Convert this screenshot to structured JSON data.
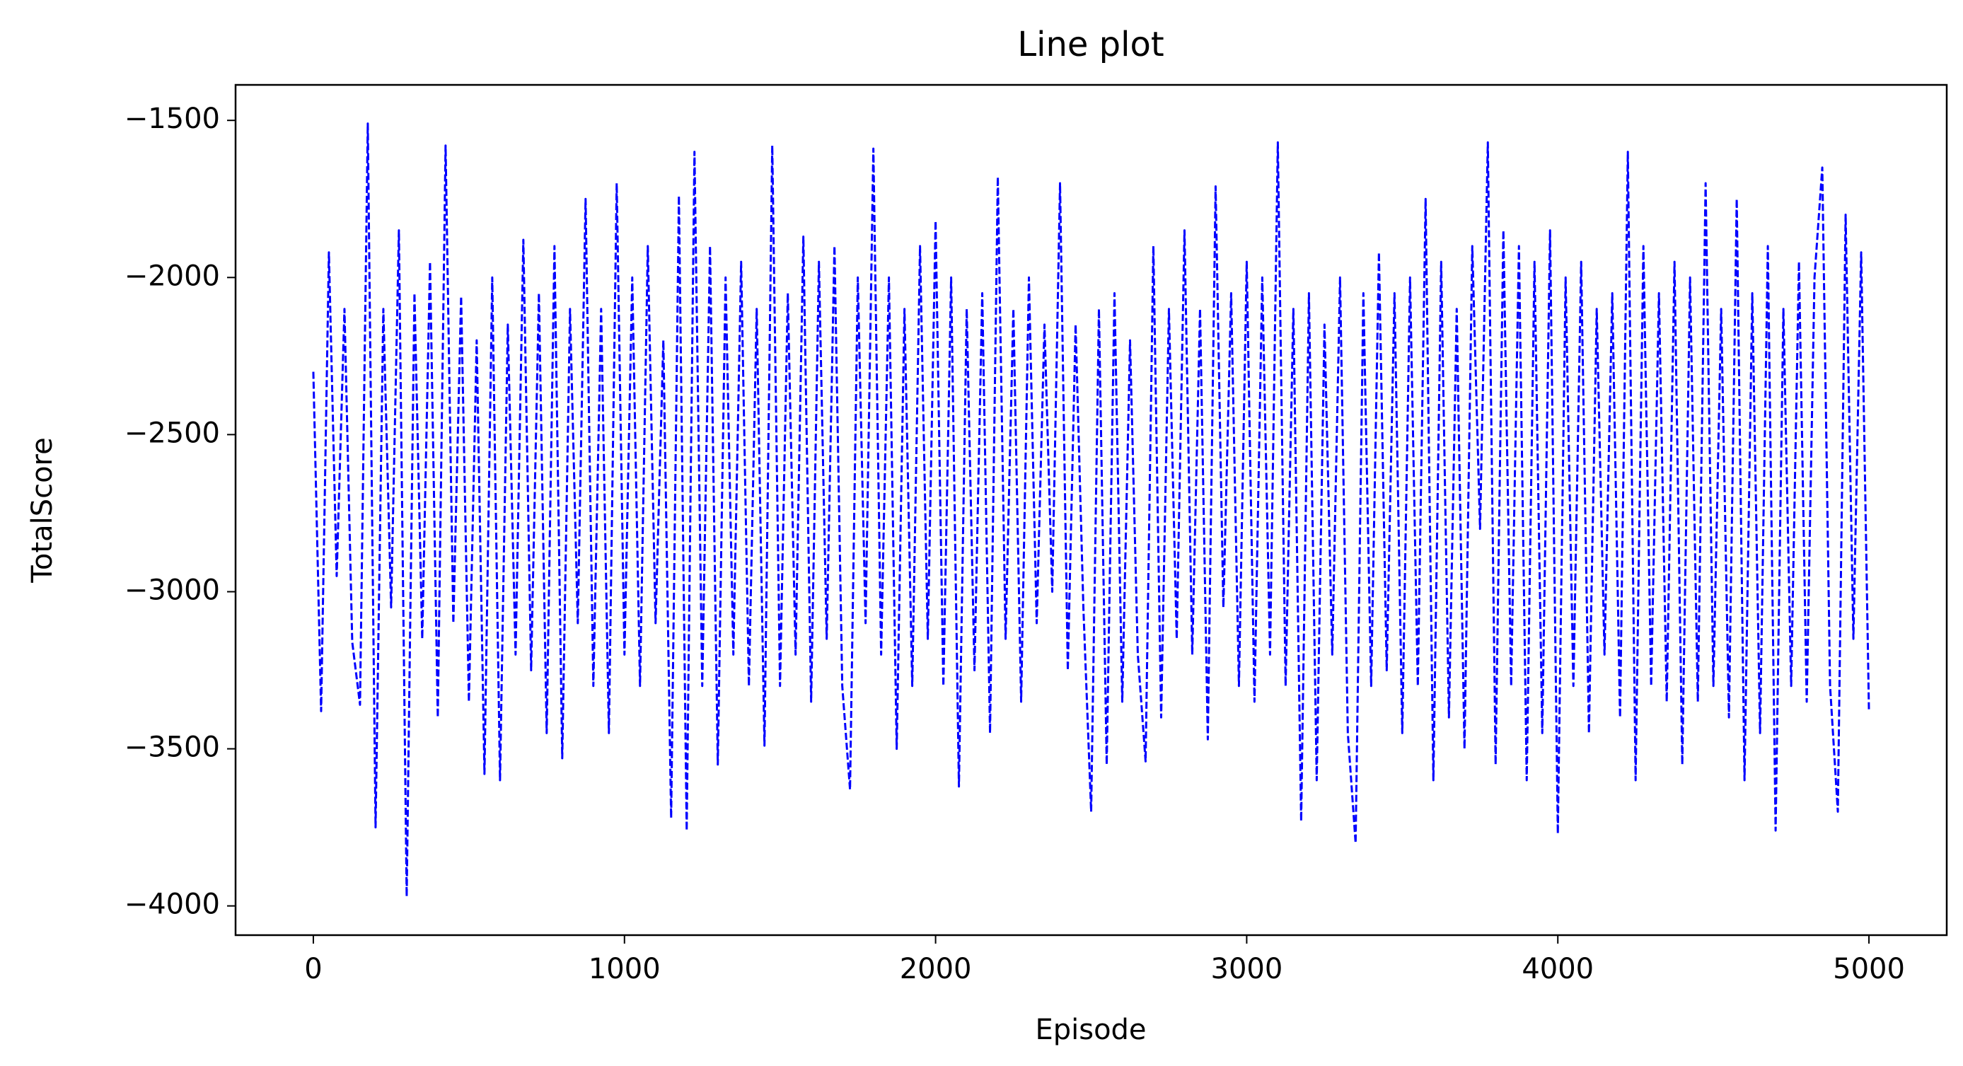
{
  "chart_data": {
    "type": "line",
    "title": "Line plot",
    "x_label": "Episode",
    "y_label": "TotalScore",
    "color": "#0000ff",
    "linestyle": "dashed",
    "x": [
      0,
      25,
      50,
      75,
      100,
      125,
      150,
      175,
      200,
      225,
      250,
      275,
      300,
      325,
      350,
      375,
      400,
      425,
      450,
      475,
      500,
      525,
      550,
      575,
      600,
      625,
      650,
      675,
      700,
      725,
      750,
      775,
      800,
      825,
      850,
      875,
      900,
      925,
      950,
      975,
      1000,
      1025,
      1050,
      1075,
      1100,
      1125,
      1150,
      1175,
      1200,
      1225,
      1250,
      1275,
      1300,
      1325,
      1350,
      1375,
      1400,
      1425,
      1450,
      1475,
      1500,
      1525,
      1550,
      1575,
      1600,
      1625,
      1650,
      1675,
      1700,
      1725,
      1750,
      1775,
      1800,
      1825,
      1850,
      1875,
      1900,
      1925,
      1950,
      1975,
      2000,
      2025,
      2050,
      2075,
      2100,
      2125,
      2150,
      2175,
      2200,
      2225,
      2250,
      2275,
      2300,
      2325,
      2350,
      2375,
      2400,
      2425,
      2450,
      2475,
      2500,
      2525,
      2550,
      2575,
      2600,
      2625,
      2650,
      2675,
      2700,
      2725,
      2750,
      2775,
      2800,
      2825,
      2850,
      2875,
      2900,
      2925,
      2950,
      2975,
      3000,
      3025,
      3050,
      3075,
      3100,
      3125,
      3150,
      3175,
      3200,
      3225,
      3250,
      3275,
      3300,
      3325,
      3350,
      3375,
      3400,
      3425,
      3450,
      3475,
      3500,
      3525,
      3550,
      3575,
      3600,
      3625,
      3650,
      3675,
      3700,
      3725,
      3750,
      3775,
      3800,
      3825,
      3850,
      3875,
      3900,
      3925,
      3950,
      3975,
      4000,
      4025,
      4050,
      4075,
      4100,
      4125,
      4150,
      4175,
      4200,
      4225,
      4250,
      4275,
      4300,
      4325,
      4350,
      4375,
      4400,
      4425,
      4450,
      4475,
      4500,
      4525,
      4550,
      4575,
      4600,
      4625,
      4650,
      4675,
      4700,
      4725,
      4750,
      4775,
      4800,
      4825,
      4850,
      4875,
      4900,
      4925,
      4950,
      4975,
      5000
    ],
    "values": [
      -2300,
      -3380,
      -1920,
      -2950,
      -2100,
      -3160,
      -3360,
      -1510,
      -3750,
      -2100,
      -3050,
      -1850,
      -3970,
      -2050,
      -3150,
      -1950,
      -3400,
      -1580,
      -3100,
      -2060,
      -3350,
      -2200,
      -3580,
      -2000,
      -3600,
      -2150,
      -3200,
      -1880,
      -3250,
      -2050,
      -3450,
      -1900,
      -3530,
      -2100,
      -3100,
      -1750,
      -3300,
      -2100,
      -3450,
      -1700,
      -3200,
      -2000,
      -3300,
      -1900,
      -3100,
      -2200,
      -3720,
      -1740,
      -3760,
      -1600,
      -3300,
      -1900,
      -3550,
      -2000,
      -3200,
      -1950,
      -3300,
      -2100,
      -3490,
      -1580,
      -3300,
      -2050,
      -3200,
      -1870,
      -3350,
      -1950,
      -3150,
      -1900,
      -3300,
      -3630,
      -2000,
      -3100,
      -1590,
      -3200,
      -2000,
      -3500,
      -2100,
      -3300,
      -1900,
      -3150,
      -1820,
      -3300,
      -2000,
      -3620,
      -2100,
      -3250,
      -2050,
      -3450,
      -1680,
      -3150,
      -2100,
      -3350,
      -2000,
      -3100,
      -2150,
      -3000,
      -1700,
      -3250,
      -2150,
      -3050,
      -3700,
      -2100,
      -3550,
      -2050,
      -3350,
      -2200,
      -3200,
      -3540,
      -1900,
      -3400,
      -2100,
      -3150,
      -1850,
      -3200,
      -2100,
      -3470,
      -1710,
      -3050,
      -2050,
      -3300,
      -1950,
      -3350,
      -2000,
      -3200,
      -1570,
      -3300,
      -2100,
      -3730,
      -2050,
      -3600,
      -2150,
      -3200,
      -2000,
      -3450,
      -3800,
      -2050,
      -3300,
      -1920,
      -3250,
      -2050,
      -3450,
      -2000,
      -3300,
      -1750,
      -3600,
      -1950,
      -3400,
      -2100,
      -3500,
      -1900,
      -2800,
      -1570,
      -3550,
      -1850,
      -3300,
      -1900,
      -3600,
      -1950,
      -3450,
      -1850,
      -3770,
      -2000,
      -3300,
      -1950,
      -3450,
      -2100,
      -3200,
      -2050,
      -3400,
      -1600,
      -3600,
      -1900,
      -3300,
      -2050,
      -3350,
      -1950,
      -3550,
      -2000,
      -3350,
      -1700,
      -3300,
      -2100,
      -3400,
      -1750,
      -3600,
      -2050,
      -3450,
      -1900,
      -3760,
      -2100,
      -3300,
      -1950,
      -3350,
      -2000,
      -1650,
      -3300,
      -3700,
      -1800,
      -3150,
      -1920,
      -3380
    ],
    "xlim": [
      -250,
      5250
    ],
    "ylim": [
      -4093,
      -1387
    ],
    "xticks": [
      0,
      1000,
      2000,
      3000,
      4000,
      5000
    ],
    "yticks": [
      {
        "value": -1500,
        "label": "−1500"
      },
      {
        "value": -2000,
        "label": "−2000"
      },
      {
        "value": -2500,
        "label": "−2500"
      },
      {
        "value": -3000,
        "label": "−3000"
      },
      {
        "value": -3500,
        "label": "−3500"
      },
      {
        "value": -4000,
        "label": "−4000"
      }
    ]
  }
}
